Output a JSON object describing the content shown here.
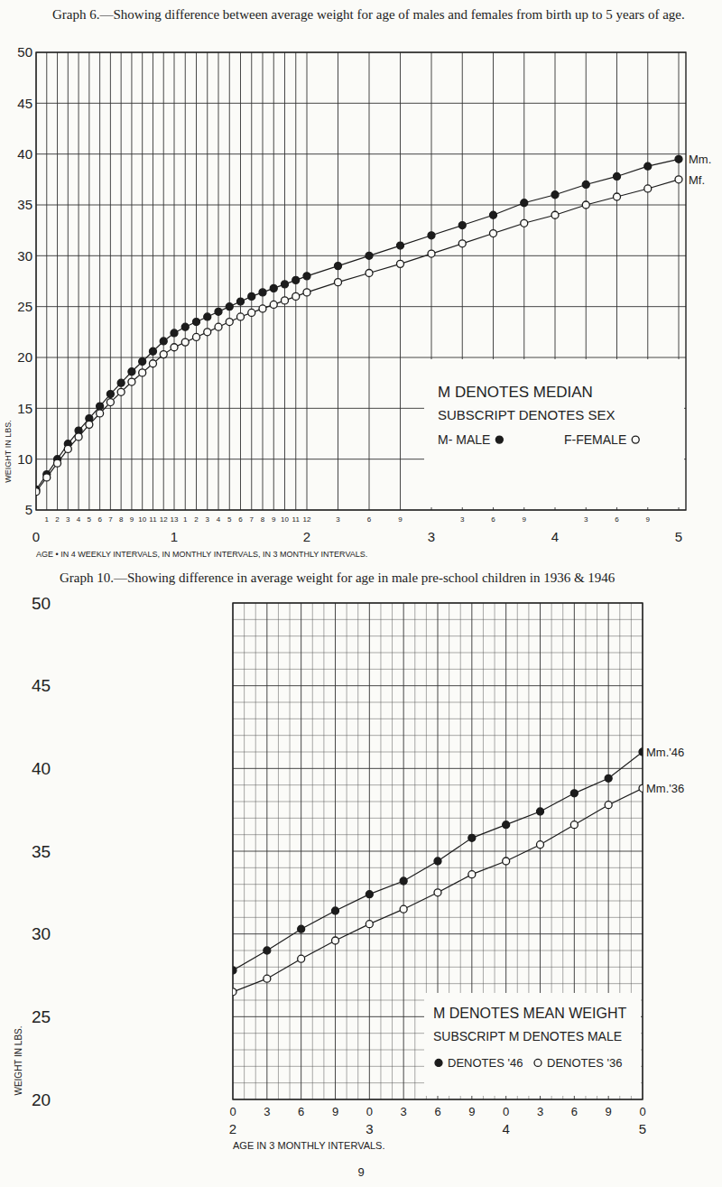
{
  "chart_data": [
    {
      "type": "line",
      "title": "Graph 6.—Showing difference between average weight for age of males and females from birth up to 5 years of age.",
      "xlabel": "AGE • IN 4 WEEKLY INTERVALS, IN MONTHLY INTERVALS, IN 3 MONTHLY INTERVALS.",
      "ylabel": "WEIGHT IN LBS.",
      "categories": [
        null,
        "1",
        "2",
        "3",
        "4",
        "5",
        "6",
        "7",
        "8",
        "9",
        "10",
        "11",
        "12",
        "13",
        "1",
        "2",
        "3",
        "4",
        "5",
        "6",
        "7",
        "8",
        "9",
        "10",
        "11",
        "12",
        "3",
        "6",
        "9",
        null,
        "3",
        "6",
        "9",
        null,
        "3",
        "6",
        "9",
        null
      ],
      "year_ticks": [
        {
          "value": 0,
          "label": "0"
        },
        {
          "value": 13,
          "label": "1"
        },
        {
          "value": 25,
          "label": "2"
        },
        {
          "value": 29,
          "label": "3"
        },
        {
          "value": 33,
          "label": "4"
        },
        {
          "value": 37,
          "label": "5"
        }
      ],
      "ylim": [
        5,
        50
      ],
      "yticks": [
        5,
        10,
        15,
        20,
        25,
        30,
        35,
        40,
        45,
        50
      ],
      "grid": true,
      "annotations": [
        "M DENOTES MEDIAN",
        "SUBSCRIPT DENOTES SEX",
        "M- MALE",
        "F-FEMALE"
      ],
      "series": [
        {
          "name": "Mm.",
          "color": "#1c1c1c",
          "marker": "filled",
          "values": [
            7.0,
            8.5,
            10.0,
            11.5,
            12.8,
            14.0,
            15.2,
            16.4,
            17.5,
            18.6,
            19.6,
            20.6,
            21.6,
            22.4,
            23.0,
            23.5,
            24.0,
            24.5,
            25.0,
            25.5,
            26.0,
            26.4,
            26.8,
            27.2,
            27.6,
            28.0,
            29.0,
            30.0,
            31.0,
            32.0,
            33.0,
            34.0,
            35.2,
            36.0,
            37.0,
            37.8,
            38.8,
            39.5
          ]
        },
        {
          "name": "Mf.",
          "color": "#1c1c1c",
          "marker": "open",
          "values": [
            6.8,
            8.2,
            9.6,
            11.0,
            12.2,
            13.4,
            14.5,
            15.6,
            16.6,
            17.6,
            18.5,
            19.4,
            20.3,
            21.0,
            21.5,
            22.0,
            22.5,
            23.0,
            23.5,
            24.0,
            24.4,
            24.8,
            25.2,
            25.6,
            26.0,
            26.4,
            27.4,
            28.3,
            29.2,
            30.2,
            31.2,
            32.2,
            33.2,
            34.0,
            35.0,
            35.8,
            36.6,
            37.5
          ]
        }
      ]
    },
    {
      "type": "line",
      "title": "Graph 10.—Showing difference in average weight for age in male pre-school children in 1936 & 1946",
      "xlabel": "AGE IN 3 MONTHLY INTERVALS.",
      "ylabel": "WEIGHT IN LBS.",
      "categories": [
        "0",
        "3",
        "6",
        "9",
        "0",
        "3",
        "6",
        "9",
        "0",
        "3",
        "6",
        "9",
        "0"
      ],
      "year_ticks": [
        {
          "value": 0,
          "label": "2"
        },
        {
          "value": 4,
          "label": "3"
        },
        {
          "value": 8,
          "label": "4"
        },
        {
          "value": 12,
          "label": "5"
        }
      ],
      "ylim": [
        20,
        50
      ],
      "yticks": [
        20,
        25,
        30,
        35,
        40,
        45,
        50
      ],
      "grid": true,
      "annotations": [
        "M DENOTES MEAN WEIGHT",
        "SUBSCRIPT M DENOTES MALE",
        "DENOTES '46",
        "DENOTES '36"
      ],
      "series": [
        {
          "name": "Mm.'46",
          "color": "#1c1c1c",
          "marker": "filled",
          "values": [
            27.8,
            29.0,
            30.3,
            31.4,
            32.4,
            33.2,
            34.4,
            35.8,
            36.6,
            37.4,
            38.5,
            39.4,
            41.0
          ]
        },
        {
          "name": "Mm.'36",
          "color": "#1c1c1c",
          "marker": "open",
          "values": [
            26.5,
            27.3,
            28.5,
            29.6,
            30.6,
            31.5,
            32.5,
            33.6,
            34.4,
            35.4,
            36.6,
            37.8,
            38.8
          ]
        }
      ]
    }
  ],
  "page_number": "9"
}
